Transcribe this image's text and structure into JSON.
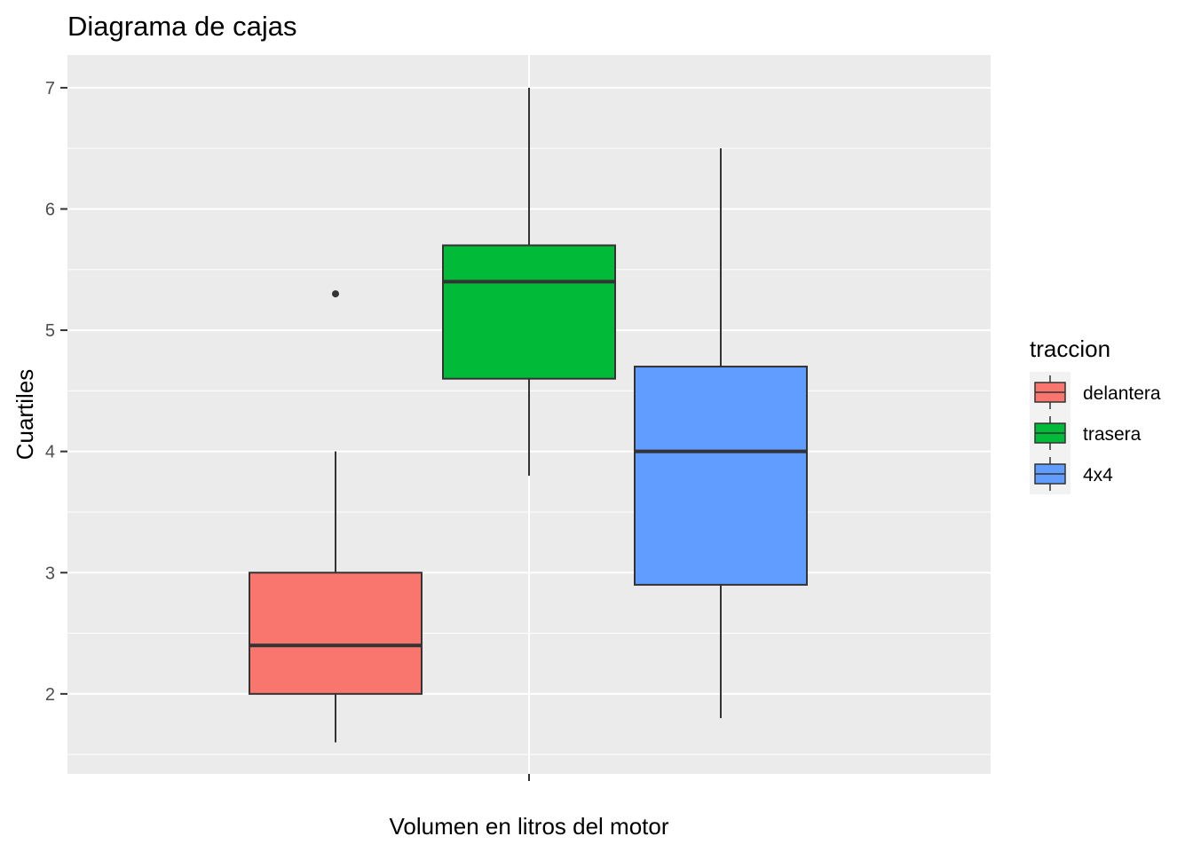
{
  "chart_data": {
    "type": "boxplot",
    "title": "Diagrama de cajas",
    "xlabel": "Volumen en litros del motor",
    "ylabel": "Cuartiles",
    "ylim": [
      1.34,
      7.27
    ],
    "yticks": [
      2,
      3,
      4,
      5,
      6,
      7
    ],
    "grid": true,
    "legend": {
      "title": "traccion",
      "position": "right"
    },
    "series": [
      {
        "name": "delantera",
        "color": "#F8766D",
        "min": 1.6,
        "q1": 2.0,
        "median": 2.4,
        "q3": 3.0,
        "max": 4.0,
        "outliers": [
          5.3
        ]
      },
      {
        "name": "trasera",
        "color": "#00BA38",
        "min": 3.8,
        "q1": 4.6,
        "median": 5.4,
        "q3": 5.7,
        "max": 7.0,
        "outliers": []
      },
      {
        "name": "4x4",
        "color": "#619CFF",
        "min": 1.8,
        "q1": 2.9,
        "median": 4.0,
        "q3": 4.7,
        "max": 6.5,
        "outliers": []
      }
    ]
  }
}
